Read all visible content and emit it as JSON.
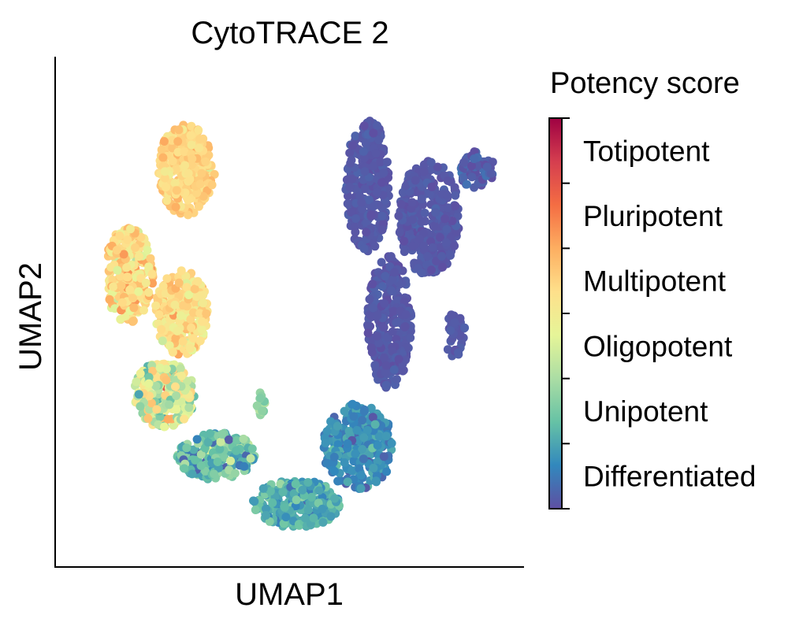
{
  "chart_data": {
    "type": "scatter",
    "title": "CytoTRACE 2",
    "xlabel": "UMAP1",
    "ylabel": "UMAP2",
    "xticks": false,
    "yticks": false,
    "grid": false,
    "colorbar": {
      "title": "Potency score",
      "position": "right",
      "range": [
        0,
        1
      ],
      "labels": [
        "Differentiated",
        "Unipotent",
        "Oligopotent",
        "Multipotent",
        "Pluripotent",
        "Totipotent"
      ],
      "colormap": [
        "#5e4fa2",
        "#3288bd",
        "#66c2a5",
        "#abdda4",
        "#e6f598",
        "#fee08b",
        "#fdae61",
        "#f46d43",
        "#d53e4f",
        "#9e0142"
      ]
    },
    "clusters": [
      {
        "cx": 0.27,
        "cy": 0.8,
        "rx": 0.065,
        "ry": 0.095,
        "n": 340,
        "score": 0.58,
        "spread": 0.04
      },
      {
        "cx": 0.14,
        "cy": 0.58,
        "rx": 0.055,
        "ry": 0.1,
        "n": 260,
        "score": 0.56,
        "spread": 0.07
      },
      {
        "cx": 0.26,
        "cy": 0.5,
        "rx": 0.06,
        "ry": 0.09,
        "n": 260,
        "score": 0.55,
        "spread": 0.06
      },
      {
        "cx": 0.22,
        "cy": 0.33,
        "rx": 0.07,
        "ry": 0.07,
        "n": 260,
        "score": 0.42,
        "spread": 0.12
      },
      {
        "cx": 0.34,
        "cy": 0.2,
        "rx": 0.09,
        "ry": 0.05,
        "n": 220,
        "score": 0.22,
        "spread": 0.08
      },
      {
        "cx": 0.52,
        "cy": 0.1,
        "rx": 0.1,
        "ry": 0.05,
        "n": 300,
        "score": 0.18,
        "spread": 0.05
      },
      {
        "cx": 0.66,
        "cy": 0.22,
        "rx": 0.08,
        "ry": 0.09,
        "n": 260,
        "score": 0.12,
        "spread": 0.04
      },
      {
        "cx": 0.73,
        "cy": 0.48,
        "rx": 0.05,
        "ry": 0.14,
        "n": 300,
        "score": 0.02,
        "spread": 0.01
      },
      {
        "cx": 0.68,
        "cy": 0.77,
        "rx": 0.05,
        "ry": 0.14,
        "n": 280,
        "score": 0.02,
        "spread": 0.01
      },
      {
        "cx": 0.82,
        "cy": 0.7,
        "rx": 0.07,
        "ry": 0.12,
        "n": 340,
        "score": 0.02,
        "spread": 0.01
      },
      {
        "cx": 0.93,
        "cy": 0.8,
        "rx": 0.04,
        "ry": 0.04,
        "n": 60,
        "score": 0.03,
        "spread": 0.02
      },
      {
        "cx": 0.88,
        "cy": 0.45,
        "rx": 0.025,
        "ry": 0.05,
        "n": 40,
        "score": 0.02,
        "spread": 0.01
      },
      {
        "cx": 0.44,
        "cy": 0.31,
        "rx": 0.012,
        "ry": 0.025,
        "n": 14,
        "score": 0.3,
        "spread": 0.03
      }
    ]
  }
}
